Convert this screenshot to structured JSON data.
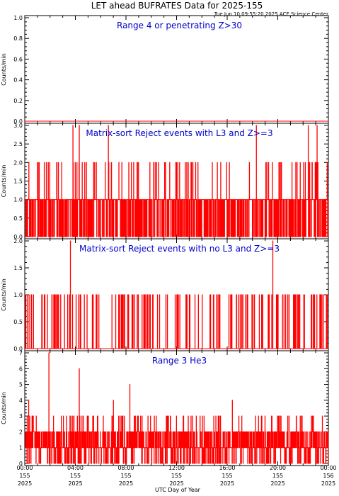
{
  "chart_data": {
    "type": "line",
    "title": "LET ahead BUFRATES Data for 2025-155",
    "timestamp": "Tue Jun 10 09:55:20 2025 ACE Science Center",
    "xlabel": "UTC Day of Year",
    "x_ticks": [
      {
        "hour": 0,
        "lines": [
          "00:00",
          "155",
          "2025"
        ]
      },
      {
        "hour": 4,
        "lines": [
          "04:00",
          "155",
          "2025"
        ]
      },
      {
        "hour": 8,
        "lines": [
          "08:00",
          "155",
          "2025"
        ]
      },
      {
        "hour": 12,
        "lines": [
          "12:00",
          "155",
          "2025"
        ]
      },
      {
        "hour": 16,
        "lines": [
          "16:00",
          "155",
          "2025"
        ]
      },
      {
        "hour": 20,
        "lines": [
          "20:00",
          "155",
          "2025"
        ]
      },
      {
        "hour": 24,
        "lines": [
          "00:00",
          "156",
          "2025"
        ]
      }
    ],
    "xlim_hours": [
      0,
      24
    ],
    "line_color": "#ff0000",
    "panels": [
      {
        "title": "Range 4 or  penetrating Z>30",
        "ylabel": "Counts/min",
        "ylim": [
          0,
          1.0
        ],
        "yticks": [
          "0.0",
          "0.2",
          "0.4",
          "0.6",
          "0.8",
          "1.0"
        ],
        "seed": 11,
        "spikes": [],
        "base": {
          "p1": 0,
          "p2": 0,
          "p3": 0
        }
      },
      {
        "title": "Matrix-sort Reject events with L3 and Z>=3",
        "ylabel": "Counts/min",
        "ylim": [
          0,
          3.0
        ],
        "yticks": [
          "0.0",
          "0.5",
          "1.0",
          "1.5",
          "2.0",
          "2.5",
          "3.0"
        ],
        "seed": 23,
        "spikes": [
          [
            3.8,
            3
          ],
          [
            4.3,
            3
          ],
          [
            6.6,
            3
          ],
          [
            18.3,
            3
          ],
          [
            22.4,
            3
          ],
          [
            23.1,
            3
          ]
        ],
        "base": {
          "p1": 0.62,
          "p2": 0.045,
          "p3": 0
        }
      },
      {
        "title": "Matrix-sort Reject events with no L3 and Z>=3",
        "ylabel": "Counts/min",
        "ylim": [
          0,
          2.0
        ],
        "yticks": [
          "0.0",
          "0.5",
          "1.0",
          "1.5",
          "2.0"
        ],
        "seed": 37,
        "spikes": [
          [
            3.6,
            2
          ],
          [
            19.6,
            2
          ]
        ],
        "base": {
          "p1": 0.1,
          "p2": 0,
          "p3": 0
        }
      },
      {
        "title": "Range 3 He3",
        "ylabel": "Counts/min",
        "ylim": [
          0,
          7
        ],
        "yticks": [
          "0",
          "1",
          "2",
          "3",
          "4",
          "5",
          "6",
          "7"
        ],
        "seed": 53,
        "spikes": [
          [
            1.9,
            7
          ],
          [
            4.3,
            6
          ],
          [
            0.3,
            4
          ],
          [
            8.3,
            5
          ],
          [
            16.4,
            4
          ],
          [
            7.0,
            4
          ]
        ],
        "base": {
          "p1": 0.45,
          "p2": 0.28,
          "p3": 0.08
        }
      }
    ]
  }
}
